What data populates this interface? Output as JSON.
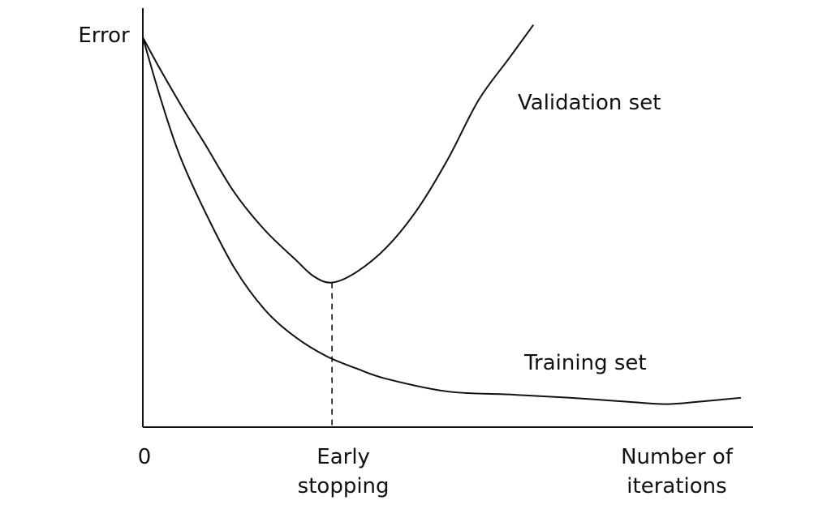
{
  "chart_data": {
    "type": "line",
    "title": "",
    "ylabel": "Error",
    "xlabel": "Number of iterations",
    "xlabel_lines": [
      "Number of",
      "iterations"
    ],
    "origin_label": "0",
    "marker": {
      "x": 3.1,
      "label_lines": [
        "Early",
        "stopping"
      ]
    },
    "xlim": [
      0,
      10
    ],
    "ylim": [
      0,
      10
    ],
    "grid": false,
    "legend": "none",
    "series": [
      {
        "name": "Validation set",
        "points": [
          [
            0,
            9.3
          ],
          [
            0.3,
            8.5
          ],
          [
            0.7,
            7.5
          ],
          [
            1.0,
            6.8
          ],
          [
            1.5,
            5.6
          ],
          [
            2.0,
            4.7
          ],
          [
            2.5,
            4.0
          ],
          [
            2.8,
            3.6
          ],
          [
            3.1,
            3.45
          ],
          [
            3.5,
            3.7
          ],
          [
            4.0,
            4.3
          ],
          [
            4.5,
            5.2
          ],
          [
            5.0,
            6.4
          ],
          [
            5.5,
            7.8
          ],
          [
            6.0,
            8.8
          ],
          [
            6.4,
            9.6
          ]
        ]
      },
      {
        "name": "Training set",
        "points": [
          [
            0,
            9.3
          ],
          [
            0.3,
            7.8
          ],
          [
            0.6,
            6.5
          ],
          [
            1.0,
            5.2
          ],
          [
            1.5,
            3.8
          ],
          [
            2.0,
            2.8
          ],
          [
            2.5,
            2.15
          ],
          [
            3.0,
            1.7
          ],
          [
            3.5,
            1.4
          ],
          [
            4.0,
            1.15
          ],
          [
            5.0,
            0.85
          ],
          [
            6.0,
            0.78
          ],
          [
            7.0,
            0.7
          ],
          [
            8.0,
            0.6
          ],
          [
            8.6,
            0.55
          ],
          [
            9.2,
            0.62
          ],
          [
            9.8,
            0.7
          ]
        ]
      }
    ],
    "series_label_positions": {
      "Validation set": "upper-right",
      "Training set": "right"
    }
  },
  "colors": {
    "ink": "#111111",
    "background": "#ffffff"
  }
}
